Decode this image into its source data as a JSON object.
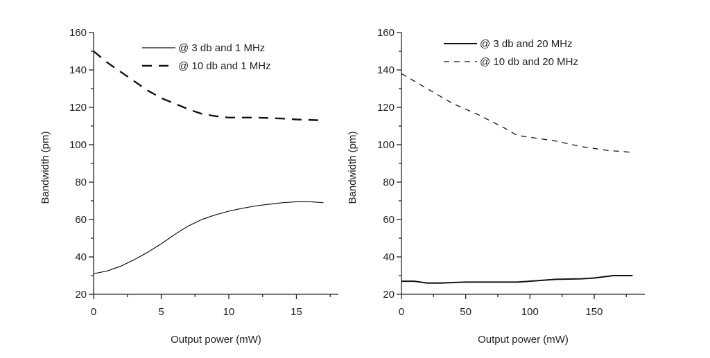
{
  "chart_data": [
    {
      "type": "line",
      "xlabel": "Output power (mW)",
      "ylabel": "Bandwidth (pm)",
      "xlim": [
        0,
        18
      ],
      "ylim": [
        20,
        160
      ],
      "xticks": [
        0,
        5,
        10,
        15
      ],
      "yticks": [
        20,
        40,
        60,
        80,
        100,
        120,
        140,
        160
      ],
      "grid": false,
      "legend": "top-right",
      "series": [
        {
          "name": "@ 3 db and 1 MHz",
          "style": "solid",
          "x": [
            0,
            1,
            2,
            3,
            4,
            5,
            6,
            7,
            8,
            9,
            10,
            11,
            12,
            13,
            14,
            15,
            16,
            17
          ],
          "y": [
            31,
            32.5,
            35,
            38.5,
            42.5,
            47,
            52,
            56.5,
            60,
            62.5,
            64.5,
            66,
            67.3,
            68.2,
            69,
            69.5,
            69.5,
            69
          ]
        },
        {
          "name": "@ 10 db and 1 MHz",
          "style": "dashed-bold",
          "x": [
            0,
            1,
            2,
            3,
            4,
            5,
            6,
            7,
            8,
            9,
            10,
            12,
            14,
            15,
            17
          ],
          "y": [
            150,
            144,
            139,
            134,
            129,
            125,
            122,
            119,
            116.5,
            115.3,
            114.5,
            114.5,
            114,
            113.5,
            113
          ]
        }
      ]
    },
    {
      "type": "line",
      "xlabel": "Output power (mW)",
      "ylabel": "Bandwidth (pm)",
      "xlim": [
        0,
        190
      ],
      "ylim": [
        20,
        160
      ],
      "xticks": [
        0,
        50,
        100,
        150
      ],
      "yticks": [
        20,
        40,
        60,
        80,
        100,
        120,
        140,
        160
      ],
      "grid": false,
      "legend": "top-right",
      "series": [
        {
          "name": "@ 3 db and 20 MHz",
          "style": "solid-bold",
          "x": [
            0,
            10,
            20,
            30,
            50,
            70,
            90,
            100,
            120,
            140,
            150,
            165,
            180
          ],
          "y": [
            27,
            27,
            26,
            26,
            26.5,
            26.5,
            26.5,
            27,
            28,
            28.3,
            28.7,
            30,
            30
          ]
        },
        {
          "name": "@ 10 db and 20 MHz",
          "style": "dashed",
          "x": [
            0,
            20,
            40,
            60,
            80,
            90,
            100,
            120,
            140,
            160,
            178
          ],
          "y": [
            138,
            130,
            122,
            116,
            109,
            105,
            104,
            102,
            99,
            97,
            96
          ]
        }
      ]
    }
  ]
}
